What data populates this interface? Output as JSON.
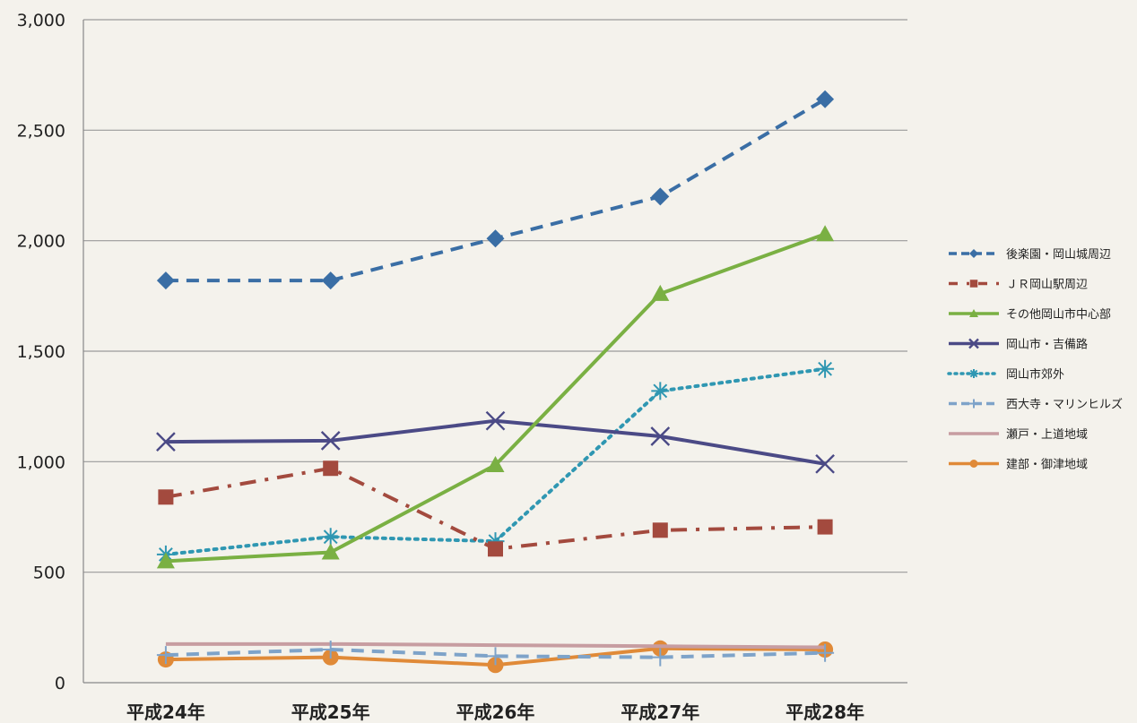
{
  "chart_data": {
    "type": "line",
    "title": "",
    "xlabel": "",
    "ylabel": "",
    "categories": [
      "平成24年",
      "平成25年",
      "平成26年",
      "平成27年",
      "平成28年"
    ],
    "ylim": [
      0,
      3000
    ],
    "yticks": [
      0,
      500,
      1000,
      1500,
      2000,
      2500,
      3000
    ],
    "ytick_labels": [
      "0",
      "500",
      "1,000",
      "1,500",
      "2,000",
      "2,500",
      "3,000"
    ],
    "grid": true,
    "legend_position": "right",
    "series": [
      {
        "name": "後楽園・岡山城周辺",
        "values": [
          1820,
          1820,
          2010,
          2200,
          2640
        ],
        "color": "#3a6ea5",
        "dash": "dash",
        "marker": "diamond"
      },
      {
        "name": "ＪＲ岡山駅周辺",
        "values": [
          840,
          970,
          605,
          690,
          705
        ],
        "color": "#a34a3e",
        "dash": "dashdot",
        "marker": "square"
      },
      {
        "name": "その他岡山市中心部",
        "values": [
          550,
          590,
          985,
          1760,
          2030
        ],
        "color": "#7ab043",
        "dash": "solid",
        "marker": "triangle"
      },
      {
        "name": "岡山市・吉備路",
        "values": [
          1090,
          1095,
          1185,
          1115,
          990
        ],
        "color": "#4b4a86",
        "dash": "solid",
        "marker": "x"
      },
      {
        "name": "岡山市郊外",
        "values": [
          580,
          660,
          640,
          1320,
          1420
        ],
        "color": "#2f97b2",
        "dash": "dot",
        "marker": "star"
      },
      {
        "name": "西大寺・マリンヒルズ",
        "values": [
          125,
          150,
          120,
          115,
          135
        ],
        "color": "#7ea3c9",
        "dash": "dash",
        "marker": "plus"
      },
      {
        "name": "瀬戸・上道地域",
        "values": [
          175,
          175,
          170,
          165,
          160
        ],
        "color": "#c79da1",
        "dash": "solid",
        "marker": "none"
      },
      {
        "name": "建部・御津地域",
        "values": [
          105,
          115,
          80,
          155,
          150
        ],
        "color": "#e08a38",
        "dash": "solid",
        "marker": "circle"
      }
    ]
  }
}
